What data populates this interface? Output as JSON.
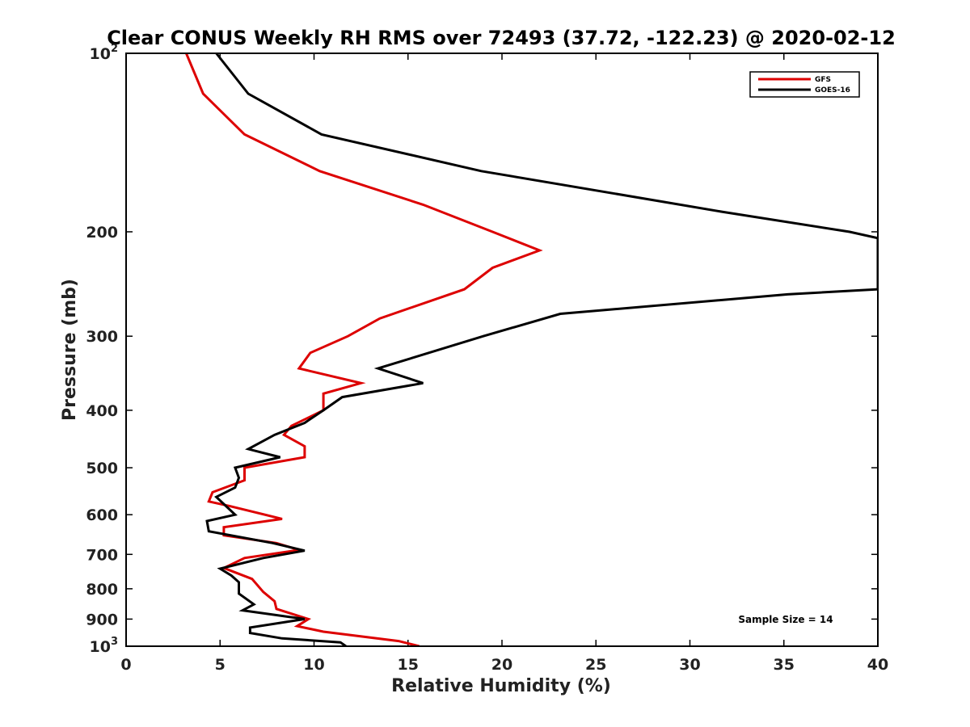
{
  "chart_data": {
    "type": "line",
    "title": "Clear CONUS Weekly RH RMS over 72493 (37.72, -122.23) @ 2020-02-12",
    "xlabel": "Relative Humidity (%)",
    "ylabel": "Pressure (mb)",
    "xlim": [
      0,
      40
    ],
    "ylim": [
      100,
      1000
    ],
    "yscale": "log",
    "y_reversed": true,
    "x_ticks": [
      0,
      5,
      10,
      15,
      20,
      25,
      30,
      35,
      40
    ],
    "x_tick_labels": [
      "0",
      "5",
      "10",
      "15",
      "20",
      "25",
      "30",
      "35",
      "40"
    ],
    "y_ticks": [
      {
        "value": 100,
        "base": "10",
        "exp": "2"
      },
      {
        "value": 200,
        "label": "200"
      },
      {
        "value": 300,
        "label": "300"
      },
      {
        "value": 400,
        "label": "400"
      },
      {
        "value": 500,
        "label": "500"
      },
      {
        "value": 600,
        "label": "600"
      },
      {
        "value": 700,
        "label": "700"
      },
      {
        "value": 800,
        "label": "800"
      },
      {
        "value": 900,
        "label": "900"
      },
      {
        "value": 1000,
        "base": "10",
        "exp": "3"
      }
    ],
    "legend_position": "top-right",
    "annotation": "Sample Size = 14",
    "series": [
      {
        "name": "GFS",
        "color": "#dd0000",
        "points": [
          [
            3.2,
            100
          ],
          [
            4.1,
            117
          ],
          [
            6.3,
            137
          ],
          [
            10.3,
            158
          ],
          [
            15.8,
            180
          ],
          [
            19.5,
            200
          ],
          [
            22.0,
            215
          ],
          [
            19.5,
            230
          ],
          [
            18.0,
            250
          ],
          [
            13.5,
            280
          ],
          [
            11.8,
            300
          ],
          [
            9.8,
            320
          ],
          [
            9.2,
            340
          ],
          [
            12.5,
            360
          ],
          [
            10.5,
            375
          ],
          [
            10.5,
            400
          ],
          [
            8.8,
            425
          ],
          [
            8.4,
            440
          ],
          [
            9.5,
            460
          ],
          [
            9.5,
            480
          ],
          [
            6.3,
            500
          ],
          [
            6.3,
            525
          ],
          [
            4.6,
            550
          ],
          [
            4.4,
            570
          ],
          [
            5.5,
            580
          ],
          [
            8.3,
            610
          ],
          [
            5.2,
            630
          ],
          [
            5.2,
            650
          ],
          [
            8.0,
            670
          ],
          [
            9.2,
            688
          ],
          [
            6.3,
            710
          ],
          [
            5.2,
            738
          ],
          [
            6.7,
            770
          ],
          [
            7.3,
            810
          ],
          [
            7.9,
            840
          ],
          [
            8.0,
            865
          ],
          [
            9.7,
            900
          ],
          [
            9.1,
            925
          ],
          [
            10.5,
            945
          ],
          [
            14.5,
            980
          ],
          [
            15.6,
            1000
          ]
        ]
      },
      {
        "name": "GOES-16",
        "color": "#000000",
        "points": [
          [
            4.8,
            100
          ],
          [
            6.5,
            117
          ],
          [
            10.4,
            137
          ],
          [
            18.9,
            158
          ],
          [
            31.7,
            185
          ],
          [
            38.5,
            200
          ],
          [
            40.0,
            205
          ],
          [
            40.0,
            250
          ],
          [
            35.2,
            255
          ],
          [
            23.1,
            275
          ],
          [
            19.0,
            300
          ],
          [
            13.4,
            340
          ],
          [
            15.8,
            360
          ],
          [
            11.5,
            380
          ],
          [
            10.5,
            400
          ],
          [
            9.5,
            420
          ],
          [
            7.9,
            440
          ],
          [
            6.5,
            465
          ],
          [
            8.2,
            480
          ],
          [
            5.8,
            500
          ],
          [
            6.0,
            520
          ],
          [
            5.8,
            540
          ],
          [
            4.8,
            560
          ],
          [
            5.8,
            600
          ],
          [
            4.3,
            615
          ],
          [
            4.4,
            640
          ],
          [
            7.8,
            670
          ],
          [
            9.5,
            690
          ],
          [
            7.3,
            710
          ],
          [
            5.0,
            740
          ],
          [
            5.6,
            760
          ],
          [
            6.0,
            780
          ],
          [
            6.0,
            815
          ],
          [
            6.8,
            850
          ],
          [
            6.2,
            870
          ],
          [
            9.5,
            900
          ],
          [
            6.6,
            930
          ],
          [
            6.6,
            950
          ],
          [
            8.3,
            970
          ],
          [
            11.4,
            985
          ],
          [
            11.7,
            1000
          ]
        ]
      }
    ]
  }
}
